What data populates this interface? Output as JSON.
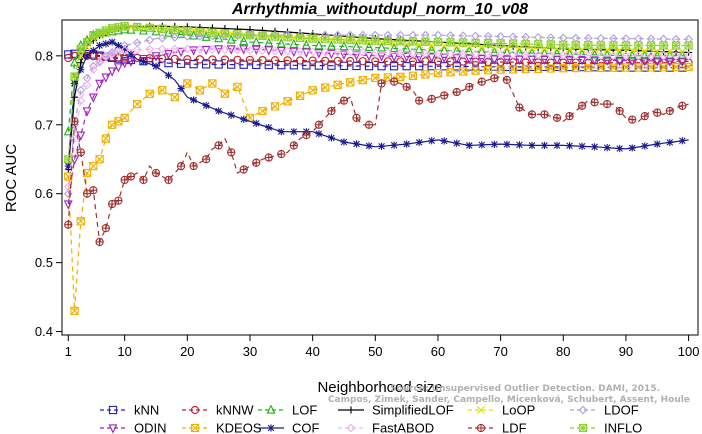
{
  "chart_data": {
    "type": "line",
    "title": "Arrhythmia_withoutdupl_norm_10_v08",
    "xlabel": "Neighborhood size",
    "ylabel": "ROC AUC",
    "xlim": [
      1,
      100
    ],
    "ylim": [
      0.4,
      0.85
    ],
    "xticks": [
      1,
      10,
      20,
      30,
      40,
      50,
      60,
      70,
      80,
      90,
      100
    ],
    "yticks": [
      0.4,
      0.5,
      0.6,
      0.7,
      0.8
    ],
    "grid": false,
    "legend_position": "bottom",
    "watermark": [
      "Source: Unsupervised Outlier Detection. DAMI, 2015.",
      "Campos, Zimek, Sander, Campello, Micenková, Schubert, Assent, Houle"
    ],
    "series": [
      {
        "name": "kNN",
        "color": "#2020c0",
        "marker": "square",
        "dash": "5,4",
        "points": [
          [
            1,
            0.802
          ],
          [
            2,
            0.803
          ],
          [
            3,
            0.803
          ],
          [
            5,
            0.802
          ],
          [
            8,
            0.797
          ],
          [
            12,
            0.793
          ],
          [
            16,
            0.79
          ],
          [
            20,
            0.788
          ],
          [
            30,
            0.787
          ],
          [
            40,
            0.786
          ],
          [
            50,
            0.785
          ],
          [
            60,
            0.785
          ],
          [
            70,
            0.784
          ],
          [
            80,
            0.784
          ],
          [
            90,
            0.783
          ],
          [
            100,
            0.783
          ]
        ]
      },
      {
        "name": "kNNW",
        "color": "#c02020",
        "marker": "circle",
        "dash": "5,4",
        "points": [
          [
            1,
            0.797
          ],
          [
            2,
            0.8
          ],
          [
            4,
            0.8
          ],
          [
            8,
            0.798
          ],
          [
            12,
            0.797
          ],
          [
            20,
            0.795
          ],
          [
            30,
            0.794
          ],
          [
            40,
            0.793
          ],
          [
            50,
            0.792
          ],
          [
            60,
            0.792
          ],
          [
            70,
            0.791
          ],
          [
            80,
            0.79
          ],
          [
            90,
            0.79
          ],
          [
            100,
            0.79
          ]
        ]
      },
      {
        "name": "LOF",
        "color": "#20b020",
        "marker": "triangle",
        "dash": "5,4",
        "points": [
          [
            1,
            0.69
          ],
          [
            2,
            0.79
          ],
          [
            3,
            0.815
          ],
          [
            5,
            0.83
          ],
          [
            8,
            0.835
          ],
          [
            10,
            0.838
          ],
          [
            15,
            0.835
          ],
          [
            20,
            0.83
          ],
          [
            30,
            0.82
          ],
          [
            40,
            0.815
          ],
          [
            50,
            0.812
          ],
          [
            60,
            0.808
          ],
          [
            70,
            0.805
          ],
          [
            80,
            0.803
          ],
          [
            90,
            0.8
          ],
          [
            100,
            0.8
          ]
        ]
      },
      {
        "name": "SimplifiedLOF",
        "color": "#000000",
        "marker": "plus",
        "dash": "",
        "points": [
          [
            1,
            0.635
          ],
          [
            2,
            0.74
          ],
          [
            3,
            0.79
          ],
          [
            4,
            0.815
          ],
          [
            6,
            0.83
          ],
          [
            8,
            0.838
          ],
          [
            10,
            0.842
          ],
          [
            15,
            0.843
          ],
          [
            20,
            0.842
          ],
          [
            25,
            0.84
          ],
          [
            30,
            0.838
          ],
          [
            40,
            0.832
          ],
          [
            50,
            0.825
          ],
          [
            60,
            0.82
          ],
          [
            70,
            0.815
          ],
          [
            80,
            0.81
          ],
          [
            90,
            0.808
          ],
          [
            100,
            0.805
          ]
        ]
      },
      {
        "name": "LoOP",
        "color": "#e0e000",
        "marker": "x",
        "dash": "5,4",
        "points": [
          [
            1,
            0.64
          ],
          [
            2,
            0.76
          ],
          [
            3,
            0.8
          ],
          [
            5,
            0.825
          ],
          [
            8,
            0.838
          ],
          [
            10,
            0.842
          ],
          [
            20,
            0.838
          ],
          [
            30,
            0.83
          ],
          [
            40,
            0.825
          ],
          [
            50,
            0.82
          ],
          [
            60,
            0.815
          ],
          [
            70,
            0.812
          ],
          [
            80,
            0.81
          ],
          [
            90,
            0.808
          ],
          [
            100,
            0.806
          ]
        ]
      },
      {
        "name": "LDOF",
        "color": "#b0a0e0",
        "marker": "diamond",
        "dash": "5,4",
        "points": [
          [
            1,
            0.6
          ],
          [
            2,
            0.7
          ],
          [
            3,
            0.75
          ],
          [
            5,
            0.785
          ],
          [
            8,
            0.805
          ],
          [
            10,
            0.815
          ],
          [
            15,
            0.825
          ],
          [
            20,
            0.828
          ],
          [
            30,
            0.83
          ],
          [
            40,
            0.83
          ],
          [
            50,
            0.83
          ],
          [
            60,
            0.83
          ],
          [
            70,
            0.828
          ],
          [
            80,
            0.826
          ],
          [
            90,
            0.825
          ],
          [
            100,
            0.824
          ]
        ]
      },
      {
        "name": "ODIN",
        "color": "#a020c0",
        "marker": "triangle-down",
        "dash": "5,4",
        "points": [
          [
            1,
            0.585
          ],
          [
            2,
            0.65
          ],
          [
            4,
            0.72
          ],
          [
            6,
            0.76
          ],
          [
            8,
            0.778
          ],
          [
            10,
            0.79
          ],
          [
            15,
            0.8
          ],
          [
            20,
            0.808
          ],
          [
            25,
            0.81
          ],
          [
            30,
            0.81
          ],
          [
            40,
            0.805
          ],
          [
            50,
            0.8
          ],
          [
            60,
            0.798
          ],
          [
            70,
            0.795
          ],
          [
            80,
            0.795
          ],
          [
            90,
            0.793
          ],
          [
            100,
            0.792
          ]
        ]
      },
      {
        "name": "KDEOS",
        "color": "#f0b000",
        "marker": "square-x",
        "dash": "5,4",
        "points": [
          [
            1,
            0.625
          ],
          [
            2,
            0.43
          ],
          [
            3,
            0.56
          ],
          [
            4,
            0.63
          ],
          [
            5,
            0.64
          ],
          [
            6,
            0.65
          ],
          [
            7,
            0.68
          ],
          [
            8,
            0.7
          ],
          [
            10,
            0.71
          ],
          [
            12,
            0.73
          ],
          [
            14,
            0.745
          ],
          [
            16,
            0.75
          ],
          [
            18,
            0.74
          ],
          [
            20,
            0.76
          ],
          [
            22,
            0.75
          ],
          [
            24,
            0.76
          ],
          [
            26,
            0.745
          ],
          [
            28,
            0.755
          ],
          [
            30,
            0.71
          ],
          [
            32,
            0.72
          ],
          [
            35,
            0.73
          ],
          [
            40,
            0.75
          ],
          [
            45,
            0.76
          ],
          [
            50,
            0.768
          ],
          [
            55,
            0.77
          ],
          [
            60,
            0.775
          ],
          [
            65,
            0.778
          ],
          [
            70,
            0.78
          ],
          [
            80,
            0.782
          ],
          [
            90,
            0.783
          ],
          [
            100,
            0.784
          ]
        ]
      },
      {
        "name": "COF",
        "color": "#1a1a90",
        "marker": "star",
        "dash": "",
        "points": [
          [
            1,
            0.64
          ],
          [
            2,
            0.76
          ],
          [
            4,
            0.8
          ],
          [
            6,
            0.815
          ],
          [
            8,
            0.82
          ],
          [
            10,
            0.81
          ],
          [
            12,
            0.795
          ],
          [
            15,
            0.785
          ],
          [
            18,
            0.765
          ],
          [
            20,
            0.74
          ],
          [
            25,
            0.72
          ],
          [
            30,
            0.705
          ],
          [
            35,
            0.69
          ],
          [
            40,
            0.69
          ],
          [
            45,
            0.675
          ],
          [
            50,
            0.668
          ],
          [
            55,
            0.672
          ],
          [
            60,
            0.678
          ],
          [
            65,
            0.67
          ],
          [
            70,
            0.672
          ],
          [
            75,
            0.67
          ],
          [
            80,
            0.67
          ],
          [
            85,
            0.668
          ],
          [
            90,
            0.665
          ],
          [
            95,
            0.672
          ],
          [
            100,
            0.678
          ]
        ]
      },
      {
        "name": "FastABOD",
        "color": "#f0b0f0",
        "marker": "diamond",
        "dash": "5,4",
        "points": [
          [
            1,
            0.61
          ],
          [
            2,
            0.68
          ],
          [
            3,
            0.735
          ],
          [
            5,
            0.78
          ],
          [
            7,
            0.8
          ],
          [
            10,
            0.808
          ],
          [
            15,
            0.81
          ],
          [
            20,
            0.81
          ],
          [
            30,
            0.808
          ],
          [
            40,
            0.806
          ],
          [
            50,
            0.805
          ],
          [
            60,
            0.803
          ],
          [
            70,
            0.802
          ],
          [
            80,
            0.801
          ],
          [
            90,
            0.8
          ],
          [
            100,
            0.8
          ]
        ]
      },
      {
        "name": "LDF",
        "color": "#a03030",
        "marker": "circle-plus",
        "dash": "5,4",
        "points": [
          [
            1,
            0.555
          ],
          [
            2,
            0.705
          ],
          [
            3,
            0.66
          ],
          [
            4,
            0.6
          ],
          [
            5,
            0.605
          ],
          [
            6,
            0.53
          ],
          [
            7,
            0.55
          ],
          [
            8,
            0.585
          ],
          [
            9,
            0.59
          ],
          [
            10,
            0.62
          ],
          [
            11,
            0.625
          ],
          [
            12,
            0.63
          ],
          [
            13,
            0.62
          ],
          [
            14,
            0.64
          ],
          [
            15,
            0.63
          ],
          [
            16,
            0.625
          ],
          [
            17,
            0.62
          ],
          [
            18,
            0.63
          ],
          [
            19,
            0.64
          ],
          [
            20,
            0.66
          ],
          [
            21,
            0.64
          ],
          [
            22,
            0.645
          ],
          [
            23,
            0.65
          ],
          [
            24,
            0.665
          ],
          [
            25,
            0.67
          ],
          [
            26,
            0.68
          ],
          [
            27,
            0.66
          ],
          [
            28,
            0.63
          ],
          [
            30,
            0.64
          ],
          [
            32,
            0.65
          ],
          [
            34,
            0.655
          ],
          [
            36,
            0.66
          ],
          [
            38,
            0.68
          ],
          [
            40,
            0.69
          ],
          [
            42,
            0.71
          ],
          [
            44,
            0.73
          ],
          [
            46,
            0.74
          ],
          [
            47,
            0.71
          ],
          [
            48,
            0.7
          ],
          [
            50,
            0.7
          ],
          [
            51,
            0.76
          ],
          [
            52,
            0.765
          ],
          [
            54,
            0.76
          ],
          [
            56,
            0.75
          ],
          [
            57,
            0.735
          ],
          [
            58,
            0.735
          ],
          [
            60,
            0.74
          ],
          [
            62,
            0.745
          ],
          [
            64,
            0.75
          ],
          [
            66,
            0.76
          ],
          [
            68,
            0.765
          ],
          [
            70,
            0.77
          ],
          [
            71,
            0.765
          ],
          [
            72,
            0.745
          ],
          [
            73,
            0.725
          ],
          [
            75,
            0.715
          ],
          [
            77,
            0.715
          ],
          [
            79,
            0.71
          ],
          [
            80,
            0.705
          ],
          [
            82,
            0.72
          ],
          [
            84,
            0.735
          ],
          [
            86,
            0.73
          ],
          [
            88,
            0.73
          ],
          [
            90,
            0.71
          ],
          [
            92,
            0.705
          ],
          [
            94,
            0.72
          ],
          [
            96,
            0.715
          ],
          [
            98,
            0.725
          ],
          [
            100,
            0.73
          ]
        ]
      },
      {
        "name": "INFLO",
        "color": "#90d030",
        "marker": "square-star",
        "dash": "5,4",
        "points": [
          [
            1,
            0.65
          ],
          [
            2,
            0.77
          ],
          [
            3,
            0.81
          ],
          [
            5,
            0.83
          ],
          [
            8,
            0.84
          ],
          [
            10,
            0.843
          ],
          [
            15,
            0.84
          ],
          [
            20,
            0.836
          ],
          [
            30,
            0.83
          ],
          [
            40,
            0.825
          ],
          [
            50,
            0.822
          ],
          [
            60,
            0.82
          ],
          [
            70,
            0.818
          ],
          [
            80,
            0.816
          ],
          [
            90,
            0.815
          ],
          [
            100,
            0.815
          ]
        ]
      }
    ]
  }
}
